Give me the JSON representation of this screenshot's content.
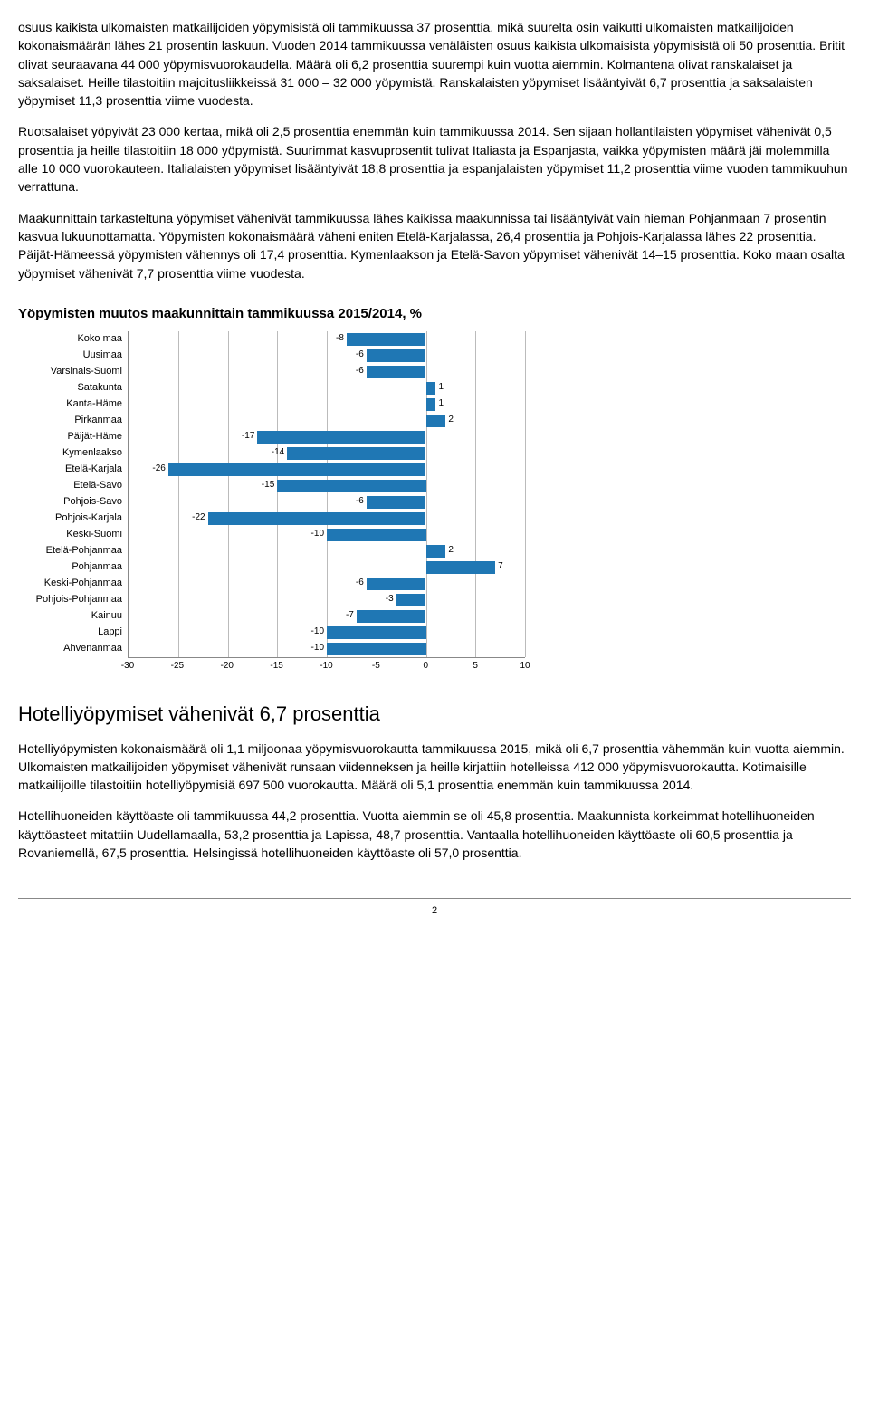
{
  "paragraphs": {
    "p1": "osuus kaikista ulkomaisten matkailijoiden yöpymisistä oli tammikuussa 37 prosenttia, mikä suurelta osin vaikutti ulkomaisten matkailijoiden kokonaismäärän lähes 21 prosentin laskuun. Vuoden 2014 tammikuussa venäläisten osuus kaikista ulkomaisista yöpymisistä oli 50 prosenttia. Britit olivat seuraavana 44 000 yöpymisvuorokaudella. Määrä oli 6,2 prosenttia suurempi kuin vuotta aiemmin. Kolmantena olivat ranskalaiset ja saksalaiset. Heille tilastoitiin majoitusliikkeissä 31 000 – 32 000 yöpymistä. Ranskalaisten yöpymiset lisääntyivät 6,7 prosenttia ja saksalaisten yöpymiset 11,3 prosenttia viime vuodesta.",
    "p2": "Ruotsalaiset yöpyivät 23 000 kertaa, mikä oli 2,5 prosenttia enemmän kuin tammikuussa 2014. Sen sijaan hollantilaisten yöpymiset vähenivät 0,5 prosenttia ja heille tilastoitiin 18 000 yöpymistä. Suurimmat kasvuprosentit tulivat Italiasta ja Espanjasta, vaikka yöpymisten määrä jäi molemmilla alle 10 000 vuorokauteen. Italialaisten yöpymiset lisääntyivät 18,8 prosenttia ja espanjalaisten yöpymiset 11,2 prosenttia viime vuoden tammikuuhun verrattuna.",
    "p3": "Maakunnittain tarkasteltuna yöpymiset vähenivät tammikuussa lähes kaikissa maakunnissa tai lisääntyivät vain hieman Pohjanmaan 7 prosentin kasvua lukuunottamatta. Yöpymisten kokonaismäärä väheni eniten Etelä-Karjalassa, 26,4 prosenttia ja Pohjois-Karjalassa lähes 22 prosenttia. Päijät-Hämeessä yöpymisten vähennys oli 17,4 prosenttia. Kymenlaakson ja Etelä-Savon yöpymiset vähenivät 14–15 prosenttia. Koko maan osalta yöpymiset vähenivät 7,7 prosenttia viime vuodesta.",
    "p4": "Hotelliyöpymisten kokonaismäärä oli 1,1 miljoonaa yöpymisvuorokautta tammikuussa 2015, mikä oli 6,7 prosenttia vähemmän kuin vuotta aiemmin. Ulkomaisten matkailijoiden yöpymiset vähenivät runsaan viidenneksen ja heille kirjattiin hotelleissa 412 000 yöpymisvuorokautta. Kotimaisille matkailijoille tilastoitiin hotelliyöpymisiä 697 500 vuorokautta. Määrä oli 5,1 prosenttia enemmän kuin tammikuussa 2014.",
    "p5": "Hotellihuoneiden käyttöaste oli tammikuussa 44,2 prosenttia. Vuotta aiemmin se oli 45,8 prosenttia. Maakunnista korkeimmat hotellihuoneiden käyttöasteet mitattiin Uudellamaalla, 53,2 prosenttia ja Lapissa, 48,7 prosenttia. Vantaalla hotellihuoneiden käyttöaste oli 60,5 prosenttia ja Rovaniemellä, 67,5 prosenttia. Helsingissä hotellihuoneiden käyttöaste oli 57,0 prosenttia."
  },
  "chart_title": "Yöpymisten muutos maakunnittain tammikuussa 2015/2014, %",
  "subheading": "Hotelliyöpymiset vähenivät 6,7 prosenttia",
  "chart": {
    "type": "bar",
    "xmin": -30,
    "xmax": 10,
    "ticks": [
      -30,
      -25,
      -20,
      -15,
      -10,
      -5,
      0,
      5,
      10
    ],
    "bar_color": "#1f77b4",
    "grid_color": "#bbbbbb",
    "label_fontsize": 11,
    "value_fontsize": 10,
    "rows": [
      {
        "label": "Koko maa",
        "value": -8
      },
      {
        "label": "Uusimaa",
        "value": -6
      },
      {
        "label": "Varsinais-Suomi",
        "value": -6
      },
      {
        "label": "Satakunta",
        "value": 1
      },
      {
        "label": "Kanta-Häme",
        "value": 1
      },
      {
        "label": "Pirkanmaa",
        "value": 2
      },
      {
        "label": "Päijät-Häme",
        "value": -17
      },
      {
        "label": "Kymenlaakso",
        "value": -14
      },
      {
        "label": "Etelä-Karjala",
        "value": -26
      },
      {
        "label": "Etelä-Savo",
        "value": -15
      },
      {
        "label": "Pohjois-Savo",
        "value": -6
      },
      {
        "label": "Pohjois-Karjala",
        "value": -22
      },
      {
        "label": "Keski-Suomi",
        "value": -10
      },
      {
        "label": "Etelä-Pohjanmaa",
        "value": 2
      },
      {
        "label": "Pohjanmaa",
        "value": 7
      },
      {
        "label": "Keski-Pohjanmaa",
        "value": -6
      },
      {
        "label": "Pohjois-Pohjanmaa",
        "value": -3
      },
      {
        "label": "Kainuu",
        "value": -7
      },
      {
        "label": "Lappi",
        "value": -10
      },
      {
        "label": "Ahvenanmaa",
        "value": -10
      }
    ]
  },
  "page_number": "2"
}
